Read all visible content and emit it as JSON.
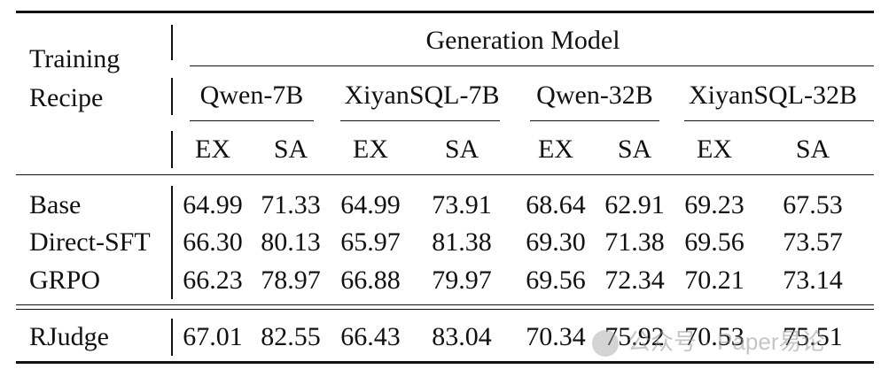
{
  "header": {
    "recipe_line1": "Training",
    "recipe_line2": "Recipe",
    "group_title": "Generation Model",
    "models": [
      "Qwen-7B",
      "XiyanSQL-7B",
      "Qwen-32B",
      "XiyanSQL-32B"
    ],
    "metrics": [
      "EX",
      "SA",
      "EX",
      "SA",
      "EX",
      "SA",
      "EX",
      "SA"
    ]
  },
  "rows": [
    {
      "recipe": "Base",
      "values": [
        "64.99",
        "71.33",
        "64.99",
        "73.91",
        "68.64",
        "62.91",
        "69.23",
        "67.53"
      ]
    },
    {
      "recipe": "Direct-SFT",
      "values": [
        "66.30",
        "80.13",
        "65.97",
        "81.38",
        "69.30",
        "71.38",
        "69.56",
        "73.57"
      ]
    },
    {
      "recipe": "GRPO",
      "values": [
        "66.23",
        "78.97",
        "66.88",
        "79.97",
        "69.56",
        "72.34",
        "70.21",
        "73.14"
      ]
    },
    {
      "recipe": "RJudge",
      "values": [
        "67.01",
        "82.55",
        "66.43",
        "83.04",
        "70.34",
        "75.92",
        "70.53",
        "75.51"
      ]
    }
  ],
  "watermark": "公众号 · Paper易论"
}
